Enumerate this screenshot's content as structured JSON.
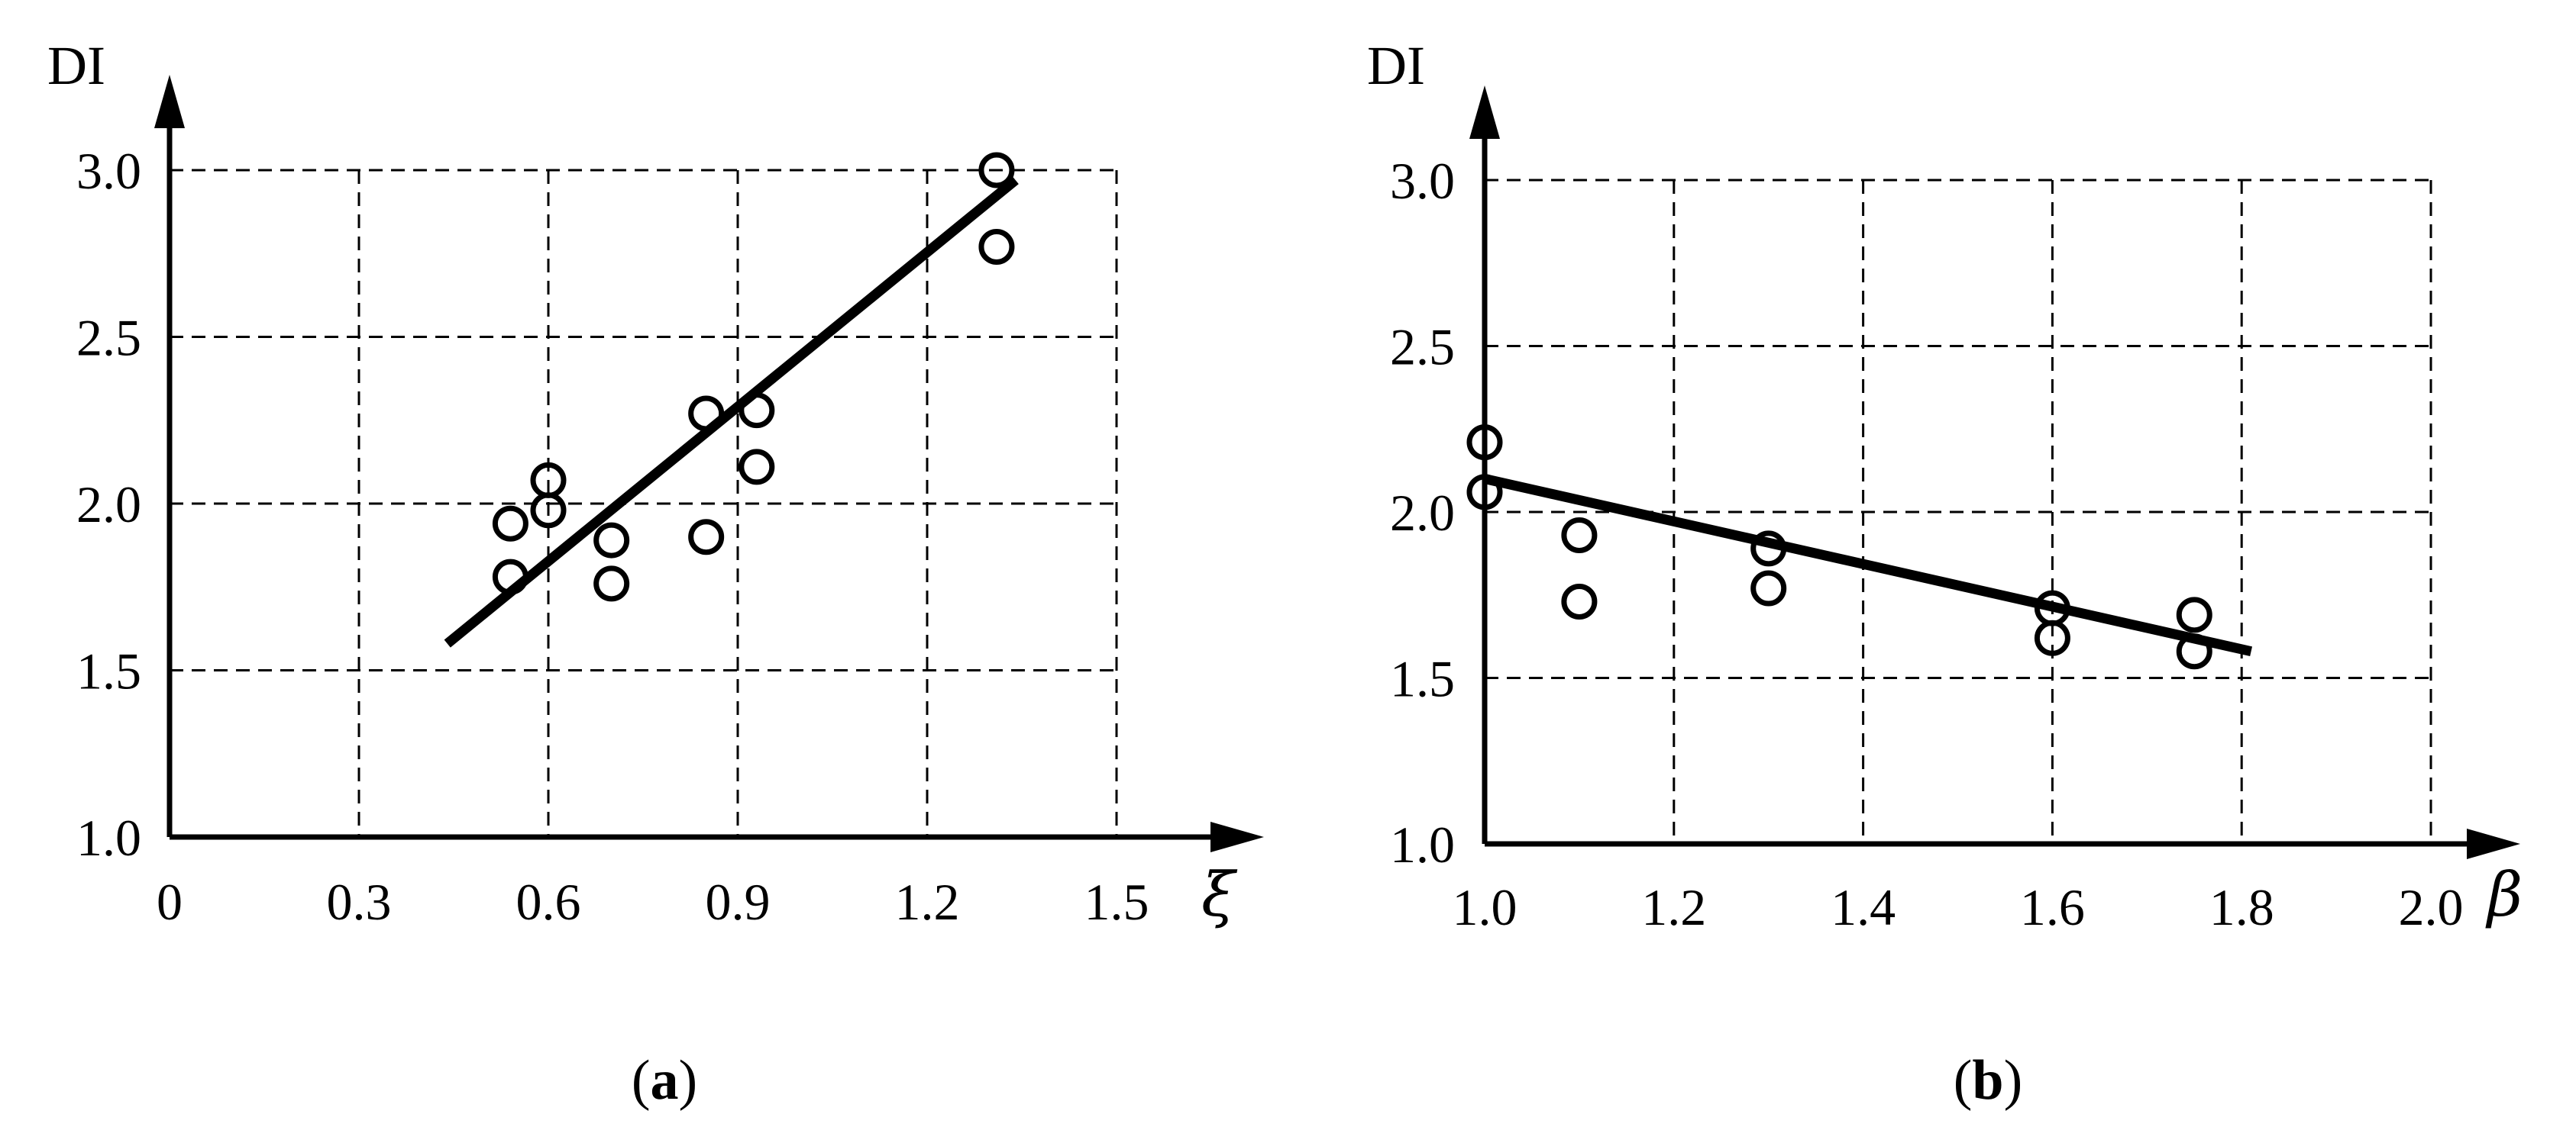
{
  "chart_data": [
    {
      "type": "scatter",
      "panel_label": {
        "open": "(",
        "letter": "a",
        "close": ")"
      },
      "ylabel": "DI",
      "xlabel": "ξ",
      "xlim": [
        0,
        1.5
      ],
      "ylim": [
        1.0,
        3.0
      ],
      "x_ticks": [
        "0",
        "0.3",
        "0.6",
        "0.9",
        "1.2",
        "1.5"
      ],
      "x_tick_values": [
        0,
        0.3,
        0.6,
        0.9,
        1.2,
        1.5
      ],
      "y_ticks": [
        "1.0",
        "1.5",
        "2.0",
        "2.5",
        "3.0"
      ],
      "y_tick_values": [
        1.0,
        1.5,
        2.0,
        2.5,
        3.0
      ],
      "grid": true,
      "points": [
        {
          "x": 0.54,
          "y": 1.94
        },
        {
          "x": 0.54,
          "y": 1.78
        },
        {
          "x": 0.6,
          "y": 2.07
        },
        {
          "x": 0.6,
          "y": 1.98
        },
        {
          "x": 0.7,
          "y": 1.89
        },
        {
          "x": 0.7,
          "y": 1.76
        },
        {
          "x": 0.85,
          "y": 2.27
        },
        {
          "x": 0.85,
          "y": 1.9
        },
        {
          "x": 0.93,
          "y": 2.28
        },
        {
          "x": 0.93,
          "y": 2.11
        },
        {
          "x": 1.31,
          "y": 3.0
        },
        {
          "x": 1.31,
          "y": 2.77
        }
      ],
      "fit_line": {
        "x": [
          0.44,
          1.34
        ],
        "y": [
          1.58,
          2.97
        ]
      }
    },
    {
      "type": "scatter",
      "panel_label": {
        "open": "(",
        "letter": "b",
        "close": ")"
      },
      "ylabel": "DI",
      "xlabel": "β",
      "xlim": [
        1.0,
        2.0
      ],
      "ylim": [
        1.0,
        3.0
      ],
      "x_ticks": [
        "1.0",
        "1.2",
        "1.4",
        "1.6",
        "1.8",
        "2.0"
      ],
      "x_tick_values": [
        1.0,
        1.2,
        1.4,
        1.6,
        1.8,
        2.0
      ],
      "y_ticks": [
        "1.0",
        "1.5",
        "2.0",
        "2.5",
        "3.0"
      ],
      "y_tick_values": [
        1.0,
        1.5,
        2.0,
        2.5,
        3.0
      ],
      "grid": true,
      "points": [
        {
          "x": 1.0,
          "y": 2.21
        },
        {
          "x": 1.0,
          "y": 2.06
        },
        {
          "x": 1.1,
          "y": 1.93
        },
        {
          "x": 1.1,
          "y": 1.73
        },
        {
          "x": 1.3,
          "y": 1.89
        },
        {
          "x": 1.3,
          "y": 1.77
        },
        {
          "x": 1.6,
          "y": 1.71
        },
        {
          "x": 1.6,
          "y": 1.62
        },
        {
          "x": 1.75,
          "y": 1.69
        },
        {
          "x": 1.75,
          "y": 1.58
        }
      ],
      "fit_line": {
        "x": [
          1.0,
          1.81
        ],
        "y": [
          2.1,
          1.58
        ]
      }
    }
  ]
}
